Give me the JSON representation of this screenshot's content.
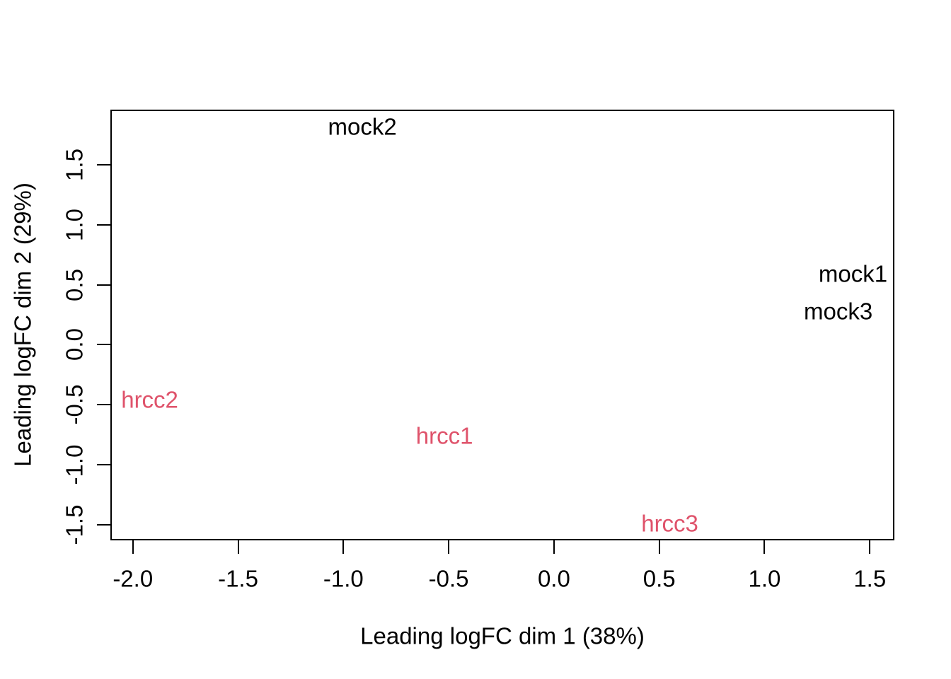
{
  "chart_data": {
    "type": "scatter",
    "subtype": "mds-plot-text-labels",
    "title": "",
    "xlabel": "Leading logFC dim 1 (38%)",
    "ylabel": "Leading logFC dim 2 (29%)",
    "xlim": [
      -2.1,
      1.61
    ],
    "ylim": [
      -1.62,
      1.95
    ],
    "grid": false,
    "legend": "none",
    "background": "#ffffff",
    "axis_color": "#000000",
    "x_ticks": {
      "values": [
        -2.0,
        -1.5,
        -1.0,
        -0.5,
        0.0,
        0.5,
        1.0,
        1.5
      ],
      "labels": [
        "-2.0",
        "-1.5",
        "-1.0",
        "-0.5",
        "0.0",
        "0.5",
        "1.0",
        "1.5"
      ]
    },
    "y_ticks": {
      "values": [
        -1.5,
        -1.0,
        -0.5,
        0.0,
        0.5,
        1.0,
        1.5
      ],
      "labels": [
        "-1.5",
        "-1.0",
        "-0.5",
        "0.0",
        "0.5",
        "1.0",
        "1.5"
      ]
    },
    "series": [
      {
        "name": "mock",
        "color": "#000000",
        "points": [
          {
            "label": "mock1",
            "x": 1.42,
            "y": 0.59
          },
          {
            "label": "mock2",
            "x": -0.91,
            "y": 1.82
          },
          {
            "label": "mock3",
            "x": 1.35,
            "y": 0.28
          }
        ]
      },
      {
        "name": "hrcc",
        "color": "#DF536B",
        "points": [
          {
            "label": "hrcc1",
            "x": -0.52,
            "y": -0.76
          },
          {
            "label": "hrcc2",
            "x": -1.92,
            "y": -0.46
          },
          {
            "label": "hrcc3",
            "x": 0.55,
            "y": -1.49
          }
        ]
      }
    ]
  }
}
